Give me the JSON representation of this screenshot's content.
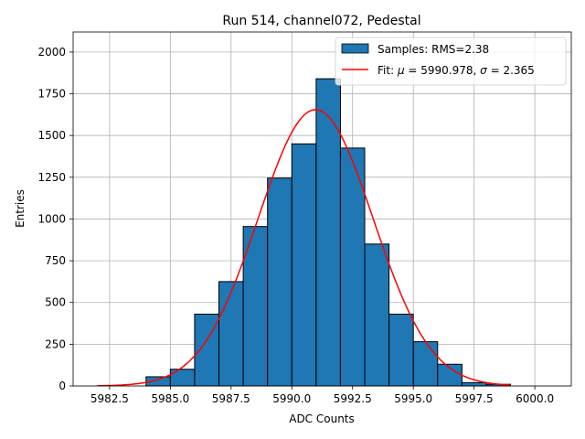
{
  "chart_data": {
    "type": "bar",
    "title": "Run 514, channel072, Pedestal",
    "xlabel": "ADC Counts",
    "ylabel": "Entries",
    "xlim": [
      5981.0,
      6001.5
    ],
    "ylim": [
      0,
      2120
    ],
    "x_ticks": [
      5982.5,
      5985.0,
      5987.5,
      5990.0,
      5992.5,
      5995.0,
      5997.5,
      6000.0
    ],
    "x_tick_labels": [
      "5982.5",
      "5985.0",
      "5987.5",
      "5990.0",
      "5992.5",
      "5995.0",
      "5997.5",
      "6000.0"
    ],
    "y_ticks": [
      0,
      250,
      500,
      750,
      1000,
      1250,
      1500,
      1750,
      2000
    ],
    "y_tick_labels": [
      "0",
      "250",
      "500",
      "750",
      "1000",
      "1250",
      "1500",
      "1750",
      "2000"
    ],
    "grid": true,
    "legend_position": "top-right",
    "bins": [
      {
        "left": 5984,
        "right": 5985,
        "count": 55
      },
      {
        "left": 5985,
        "right": 5986,
        "count": 100
      },
      {
        "left": 5986,
        "right": 5987,
        "count": 430
      },
      {
        "left": 5987,
        "right": 5988,
        "count": 625
      },
      {
        "left": 5988,
        "right": 5989,
        "count": 955
      },
      {
        "left": 5989,
        "right": 5990,
        "count": 1245
      },
      {
        "left": 5990,
        "right": 5991,
        "count": 1450
      },
      {
        "left": 5991,
        "right": 5992,
        "count": 1840
      },
      {
        "left": 5992,
        "right": 5993,
        "count": 1425
      },
      {
        "left": 5993,
        "right": 5994,
        "count": 850
      },
      {
        "left": 5994,
        "right": 5995,
        "count": 430
      },
      {
        "left": 5995,
        "right": 5996,
        "count": 265
      },
      {
        "left": 5996,
        "right": 5997,
        "count": 130
      },
      {
        "left": 5997,
        "right": 5998,
        "count": 20
      },
      {
        "left": 5998,
        "right": 5999,
        "count": 10
      }
    ],
    "fit": {
      "mu": 5990.978,
      "sigma": 2.365,
      "amplitude": 1655,
      "x_range": [
        5982,
        5999
      ]
    },
    "legend": [
      {
        "label": "Samples: RMS=2.38",
        "kind": "patch",
        "color": "#1f77b4"
      },
      {
        "label_prefix": "Fit: ",
        "mu_symbol": "μ",
        "mu_text": " = 5990.978, ",
        "sigma_symbol": "σ",
        "sigma_text": " = 2.365",
        "kind": "line",
        "color": "#ff0000"
      }
    ],
    "colors": {
      "bar": "#1f77b4",
      "bar_edge": "#000000",
      "fit": "#ff0000",
      "grid": "#b0b0b0"
    }
  }
}
